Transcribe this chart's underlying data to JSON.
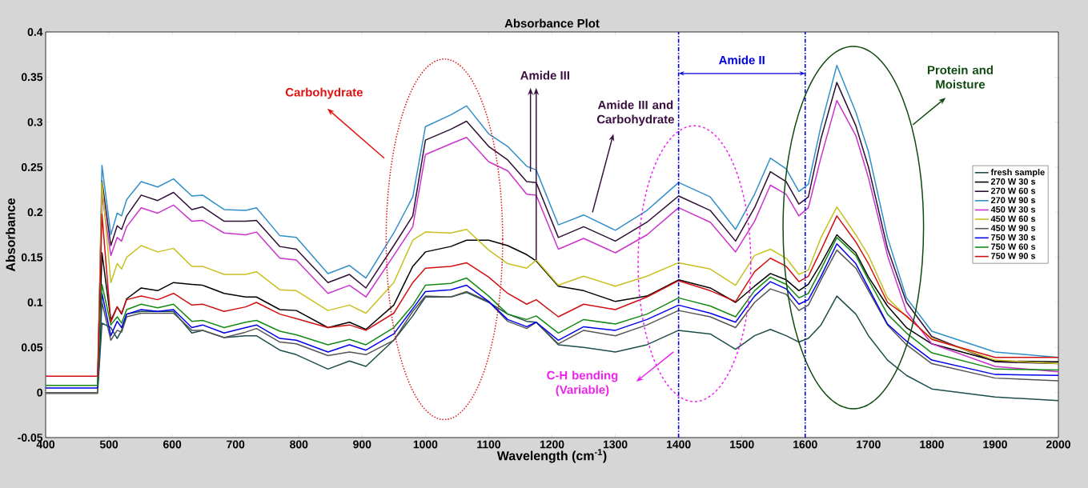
{
  "chart_data": {
    "type": "line",
    "title": "Absorbance Plot",
    "xlabel": "Wavelength (cm$^{-1}$)",
    "ylabel": "Absorbance",
    "x": [
      400,
      482,
      489,
      503,
      513,
      520,
      528,
      551,
      577,
      602,
      631,
      648,
      682,
      716,
      733,
      770,
      796,
      846,
      880,
      906,
      950,
      980,
      1000,
      1040,
      1065,
      1100,
      1130,
      1160,
      1175,
      1210,
      1250,
      1300,
      1350,
      1400,
      1450,
      1490,
      1520,
      1545,
      1570,
      1590,
      1605,
      1625,
      1650,
      1680,
      1700,
      1730,
      1760,
      1800,
      1900,
      2000
    ],
    "series": [
      {
        "name": "fresh sample",
        "color": "#1b4d4a",
        "values": [
          -0.001,
          -0.001,
          0.077,
          0.072,
          0.06,
          0.069,
          0.087,
          0.09,
          0.09,
          0.09,
          0.066,
          0.069,
          0.061,
          0.063,
          0.063,
          0.047,
          0.042,
          0.026,
          0.035,
          0.029,
          0.058,
          0.085,
          0.106,
          0.106,
          0.111,
          0.1,
          0.087,
          0.079,
          0.078,
          0.053,
          0.05,
          0.045,
          0.053,
          0.069,
          0.065,
          0.048,
          0.063,
          0.07,
          0.063,
          0.056,
          0.06,
          0.075,
          0.107,
          0.087,
          0.063,
          0.036,
          0.019,
          0.004,
          -0.005,
          -0.009
        ]
      },
      {
        "name": "270 W 30 s",
        "color": "#000000",
        "values": [
          0,
          0,
          0.155,
          0.08,
          0.095,
          0.087,
          0.104,
          0.116,
          0.113,
          0.122,
          0.12,
          0.119,
          0.11,
          0.106,
          0.106,
          0.092,
          0.091,
          0.072,
          0.078,
          0.07,
          0.097,
          0.14,
          0.156,
          0.162,
          0.169,
          0.169,
          0.163,
          0.153,
          0.146,
          0.118,
          0.113,
          0.101,
          0.107,
          0.125,
          0.116,
          0.1,
          0.118,
          0.132,
          0.125,
          0.113,
          0.12,
          0.143,
          0.175,
          0.155,
          0.128,
          0.096,
          0.072,
          0.054,
          0.035,
          0.034
        ]
      },
      {
        "name": "270 W 60 s",
        "color": "#2e0f35",
        "values": [
          0,
          0,
          0.235,
          0.163,
          0.185,
          0.181,
          0.196,
          0.219,
          0.213,
          0.222,
          0.203,
          0.206,
          0.19,
          0.19,
          0.191,
          0.162,
          0.159,
          0.122,
          0.131,
          0.116,
          0.163,
          0.196,
          0.28,
          0.292,
          0.301,
          0.273,
          0.258,
          0.234,
          0.233,
          0.172,
          0.184,
          0.168,
          0.189,
          0.218,
          0.202,
          0.168,
          0.205,
          0.245,
          0.234,
          0.209,
          0.217,
          0.282,
          0.344,
          0.296,
          0.25,
          0.16,
          0.1,
          0.062,
          0.034,
          0.032
        ]
      },
      {
        "name": "270 W 90 s",
        "color": "#2f8fc8",
        "values": [
          0,
          0,
          0.252,
          0.175,
          0.199,
          0.196,
          0.214,
          0.234,
          0.228,
          0.237,
          0.218,
          0.219,
          0.203,
          0.202,
          0.205,
          0.174,
          0.172,
          0.132,
          0.141,
          0.127,
          0.177,
          0.217,
          0.295,
          0.308,
          0.318,
          0.287,
          0.273,
          0.251,
          0.247,
          0.186,
          0.197,
          0.18,
          0.202,
          0.233,
          0.217,
          0.181,
          0.22,
          0.26,
          0.248,
          0.223,
          0.231,
          0.296,
          0.363,
          0.311,
          0.267,
          0.172,
          0.105,
          0.068,
          0.045,
          0.039
        ]
      },
      {
        "name": "450 W 30 s",
        "color": "#cc33cc",
        "values": [
          0,
          0,
          0.22,
          0.152,
          0.172,
          0.168,
          0.184,
          0.205,
          0.199,
          0.208,
          0.19,
          0.191,
          0.177,
          0.175,
          0.178,
          0.149,
          0.147,
          0.11,
          0.119,
          0.106,
          0.152,
          0.184,
          0.264,
          0.276,
          0.283,
          0.256,
          0.246,
          0.22,
          0.219,
          0.159,
          0.171,
          0.155,
          0.175,
          0.205,
          0.189,
          0.156,
          0.19,
          0.23,
          0.22,
          0.196,
          0.205,
          0.261,
          0.324,
          0.285,
          0.238,
          0.152,
          0.09,
          0.054,
          0.029,
          0.023
        ]
      },
      {
        "name": "450 W 60 s",
        "color": "#c8c020",
        "values": [
          0,
          0,
          0.233,
          0.122,
          0.143,
          0.137,
          0.15,
          0.163,
          0.156,
          0.16,
          0.14,
          0.14,
          0.131,
          0.131,
          0.134,
          0.114,
          0.113,
          0.091,
          0.097,
          0.088,
          0.122,
          0.169,
          0.178,
          0.177,
          0.181,
          0.158,
          0.143,
          0.138,
          0.147,
          0.119,
          0.129,
          0.118,
          0.129,
          0.144,
          0.137,
          0.119,
          0.152,
          0.159,
          0.149,
          0.131,
          0.136,
          0.172,
          0.206,
          0.175,
          0.152,
          0.105,
          0.084,
          0.06,
          0.036,
          0.032
        ]
      },
      {
        "name": "450 W 90 s",
        "color": "#555555",
        "values": [
          0,
          0,
          0.1,
          0.058,
          0.069,
          0.067,
          0.084,
          0.088,
          0.088,
          0.088,
          0.069,
          0.069,
          0.061,
          0.067,
          0.071,
          0.056,
          0.054,
          0.041,
          0.045,
          0.042,
          0.058,
          0.09,
          0.107,
          0.106,
          0.112,
          0.101,
          0.079,
          0.071,
          0.078,
          0.054,
          0.069,
          0.063,
          0.075,
          0.091,
          0.084,
          0.072,
          0.1,
          0.115,
          0.109,
          0.091,
          0.097,
          0.125,
          0.158,
          0.138,
          0.113,
          0.075,
          0.053,
          0.032,
          0.016,
          0.013
        ]
      },
      {
        "name": "750 W 30 s",
        "color": "#0000ee",
        "values": [
          0.005,
          0.005,
          0.11,
          0.063,
          0.079,
          0.072,
          0.087,
          0.092,
          0.09,
          0.092,
          0.072,
          0.075,
          0.066,
          0.072,
          0.075,
          0.06,
          0.058,
          0.045,
          0.053,
          0.047,
          0.065,
          0.093,
          0.112,
          0.114,
          0.119,
          0.101,
          0.081,
          0.073,
          0.078,
          0.058,
          0.073,
          0.069,
          0.081,
          0.097,
          0.088,
          0.078,
          0.107,
          0.123,
          0.115,
          0.098,
          0.103,
          0.129,
          0.165,
          0.143,
          0.116,
          0.076,
          0.057,
          0.036,
          0.02,
          0.019
        ]
      },
      {
        "name": "750 W 60 s",
        "color": "#138a13",
        "values": [
          0.008,
          0.008,
          0.12,
          0.075,
          0.084,
          0.077,
          0.092,
          0.098,
          0.094,
          0.098,
          0.079,
          0.08,
          0.072,
          0.078,
          0.08,
          0.068,
          0.064,
          0.053,
          0.059,
          0.053,
          0.072,
          0.097,
          0.119,
          0.121,
          0.127,
          0.107,
          0.087,
          0.081,
          0.085,
          0.066,
          0.081,
          0.076,
          0.087,
          0.105,
          0.096,
          0.084,
          0.113,
          0.128,
          0.12,
          0.105,
          0.11,
          0.137,
          0.172,
          0.152,
          0.125,
          0.087,
          0.066,
          0.044,
          0.026,
          0.025
        ]
      },
      {
        "name": "750 W 90 s",
        "color": "#d01010",
        "values": [
          0.018,
          0.018,
          0.198,
          0.078,
          0.095,
          0.088,
          0.103,
          0.107,
          0.103,
          0.11,
          0.097,
          0.098,
          0.09,
          0.095,
          0.1,
          0.087,
          0.082,
          0.072,
          0.075,
          0.069,
          0.088,
          0.122,
          0.138,
          0.14,
          0.144,
          0.128,
          0.11,
          0.098,
          0.103,
          0.084,
          0.098,
          0.092,
          0.106,
          0.124,
          0.113,
          0.101,
          0.134,
          0.149,
          0.14,
          0.123,
          0.129,
          0.158,
          0.196,
          0.167,
          0.143,
          0.1,
          0.085,
          0.059,
          0.039,
          0.039
        ]
      }
    ],
    "xlim": [
      400,
      2000
    ],
    "ylim": [
      -0.05,
      0.4
    ],
    "xticks": [
      400,
      500,
      600,
      700,
      800,
      900,
      1000,
      1100,
      1200,
      1300,
      1400,
      1500,
      1600,
      1700,
      1800,
      1900,
      2000
    ],
    "yticks": [
      -0.05,
      0,
      0.05,
      0.1,
      0.15,
      0.2,
      0.25,
      0.3,
      0.35,
      0.4
    ],
    "legend": "right",
    "ref_lines": [
      {
        "axis": "x",
        "value": 1400,
        "color": "#0000dd"
      },
      {
        "axis": "x",
        "value": 1600,
        "color": "#0000dd"
      }
    ],
    "annotations": [
      "Carbohydrate",
      "Amide III",
      "Amide III  and Carbohydrate",
      "Amide II",
      "C-H bending (Variable)",
      "Protein and Moisture"
    ]
  }
}
